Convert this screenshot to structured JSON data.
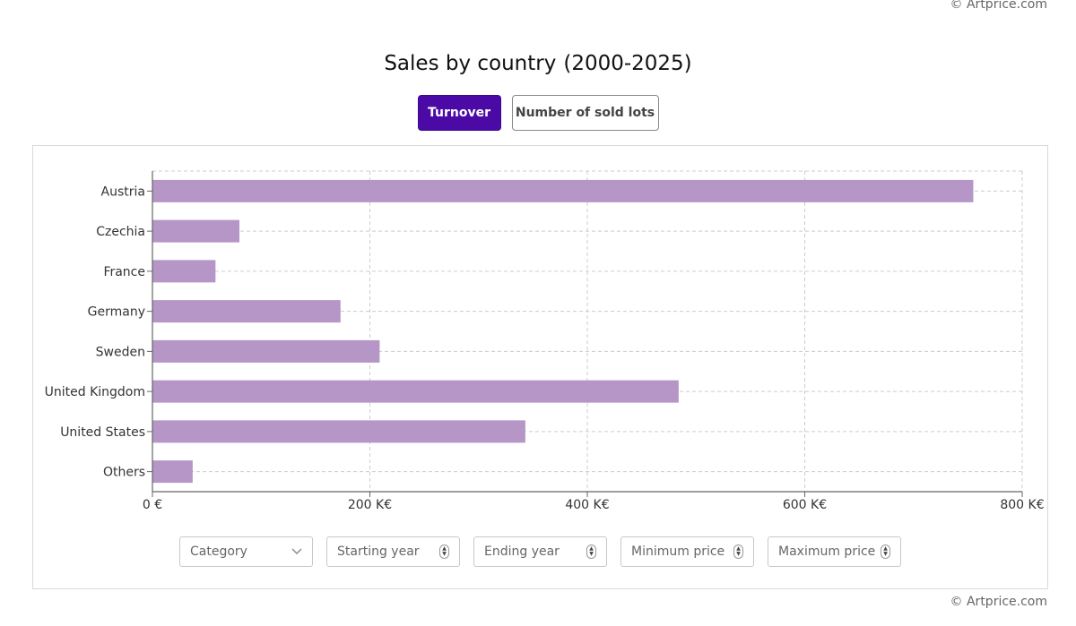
{
  "credit": "© Artprice.com",
  "title": {
    "main": "Sales by country",
    "period": "(2000-2025)"
  },
  "toggles": [
    {
      "label": "Turnover",
      "active": true
    },
    {
      "label": "Number of sold lots",
      "active": false
    }
  ],
  "filters": [
    {
      "placeholder": "Category",
      "icon": "chevron-down-icon"
    },
    {
      "placeholder": "Starting year",
      "icon": "spinner-icon"
    },
    {
      "placeholder": "Ending year",
      "icon": "spinner-icon"
    },
    {
      "placeholder": "Minimum price",
      "icon": "spinner-icon"
    },
    {
      "placeholder": "Maximum price",
      "icon": "spinner-icon"
    }
  ],
  "colors": {
    "bar": "#b596c7",
    "accent": "#4b0aa6",
    "grid": "#cccccc",
    "axis": "#666666"
  },
  "chart_data": {
    "type": "bar",
    "orientation": "horizontal",
    "title": "Sales by country (2000-2025)",
    "categories": [
      "Austria",
      "Czechia",
      "France",
      "Germany",
      "Sweden",
      "United Kingdom",
      "United States",
      "Others"
    ],
    "values": [
      755,
      80,
      58,
      173,
      209,
      484,
      343,
      37
    ],
    "unit": "K€",
    "xlim": [
      0,
      800
    ],
    "xticks": [
      0,
      200,
      400,
      600,
      800
    ],
    "xtick_labels": [
      "0 €",
      "200 K€",
      "400 K€",
      "600 K€",
      "800 K€"
    ],
    "grid": true
  }
}
